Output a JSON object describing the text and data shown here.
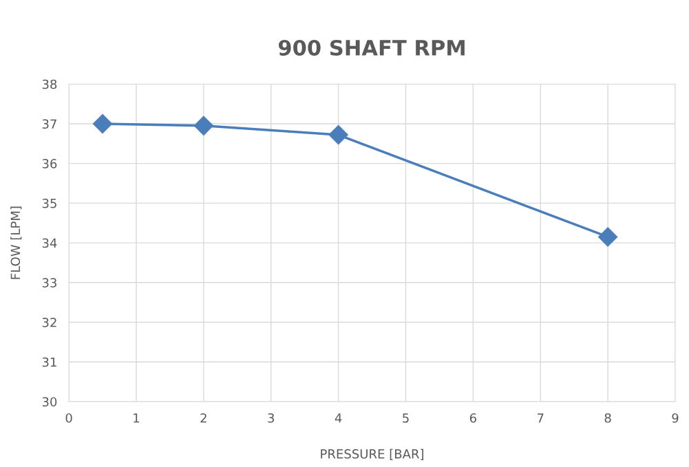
{
  "chart_data": {
    "type": "line",
    "title": "900 SHAFT RPM",
    "xlabel": "PRESSURE [BAR]",
    "ylabel": "FLOW [LPM]",
    "x": [
      0.5,
      2,
      4,
      8
    ],
    "series": [
      {
        "color": "#4a7ebb",
        "values": [
          37.0,
          36.95,
          36.72,
          34.15
        ]
      }
    ],
    "xlim": [
      0,
      9
    ],
    "xticks": [
      0,
      1,
      2,
      3,
      4,
      5,
      6,
      7,
      8,
      9
    ],
    "ylim": [
      30,
      38
    ],
    "yticks": [
      30,
      31,
      32,
      33,
      34,
      35,
      36,
      37,
      38
    ],
    "grid": true,
    "marker": "diamond",
    "line_style": "solid"
  }
}
